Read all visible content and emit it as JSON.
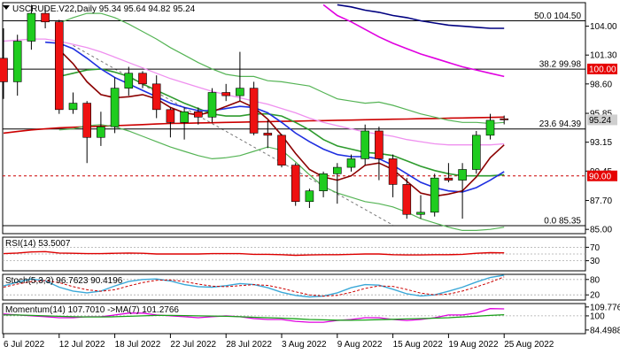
{
  "chart_data": [
    {
      "type": "candlestick",
      "title": "USCRUDE.V22,Daily  95.34 95.64 94.82 95.24",
      "ylim": [
        84.6,
        106.2
      ],
      "y_ticks": [
        "104.00",
        "101.30",
        "98.60",
        "95.85",
        "93.15",
        "90.45",
        "87.70",
        "85.00"
      ],
      "x_labels": [
        "6 Jul 2022",
        "12 Jul 2022",
        "18 Jul 2022",
        "22 Jul 2022",
        "28 Jul 2022",
        "3 Aug 2022",
        "9 Aug 2022",
        "15 Aug 2022",
        "19 Aug 2022",
        "25 Aug 2022"
      ],
      "x_label_index": [
        0,
        4,
        8,
        12,
        16,
        20,
        24,
        28,
        32,
        36
      ],
      "candles": [
        {
          "o": 101.0,
          "h": 103.8,
          "l": 97.2,
          "c": 98.8
        },
        {
          "o": 98.8,
          "h": 103.2,
          "l": 97.5,
          "c": 102.6
        },
        {
          "o": 102.6,
          "h": 106.0,
          "l": 101.8,
          "c": 105.2
        },
        {
          "o": 105.2,
          "h": 105.8,
          "l": 103.8,
          "c": 104.4
        },
        {
          "o": 104.4,
          "h": 104.6,
          "l": 95.8,
          "c": 96.2
        },
        {
          "o": 96.2,
          "h": 97.8,
          "l": 95.8,
          "c": 96.8
        },
        {
          "o": 96.8,
          "h": 97.0,
          "l": 91.2,
          "c": 93.6
        },
        {
          "o": 93.6,
          "h": 96.0,
          "l": 92.8,
          "c": 94.6
        },
        {
          "o": 94.6,
          "h": 99.2,
          "l": 94.0,
          "c": 98.2
        },
        {
          "o": 98.2,
          "h": 100.2,
          "l": 97.5,
          "c": 99.6
        },
        {
          "o": 99.6,
          "h": 99.8,
          "l": 98.2,
          "c": 98.6
        },
        {
          "o": 98.6,
          "h": 99.4,
          "l": 95.4,
          "c": 96.2
        },
        {
          "o": 96.2,
          "h": 96.4,
          "l": 93.6,
          "c": 95.0
        },
        {
          "o": 95.0,
          "h": 96.4,
          "l": 93.4,
          "c": 96.0
        },
        {
          "o": 96.0,
          "h": 96.4,
          "l": 94.8,
          "c": 95.5
        },
        {
          "o": 95.5,
          "h": 98.2,
          "l": 95.0,
          "c": 97.8
        },
        {
          "o": 97.8,
          "h": 98.6,
          "l": 97.0,
          "c": 97.5
        },
        {
          "o": 97.5,
          "h": 101.6,
          "l": 97.0,
          "c": 98.2
        },
        {
          "o": 98.2,
          "h": 98.8,
          "l": 93.8,
          "c": 94.0
        },
        {
          "o": 94.0,
          "h": 95.2,
          "l": 92.6,
          "c": 93.8
        },
        {
          "o": 93.8,
          "h": 93.9,
          "l": 90.8,
          "c": 91.0
        },
        {
          "o": 91.0,
          "h": 91.2,
          "l": 87.2,
          "c": 87.6
        },
        {
          "o": 87.6,
          "h": 88.8,
          "l": 87.0,
          "c": 88.6
        },
        {
          "o": 88.6,
          "h": 90.4,
          "l": 88.0,
          "c": 90.2
        },
        {
          "o": 90.2,
          "h": 91.2,
          "l": 87.4,
          "c": 90.8
        },
        {
          "o": 90.8,
          "h": 92.0,
          "l": 90.4,
          "c": 91.6
        },
        {
          "o": 91.6,
          "h": 94.8,
          "l": 91.0,
          "c": 94.2
        },
        {
          "o": 94.2,
          "h": 94.6,
          "l": 89.6,
          "c": 91.6
        },
        {
          "o": 91.6,
          "h": 92.0,
          "l": 88.0,
          "c": 89.2
        },
        {
          "o": 89.2,
          "h": 89.8,
          "l": 86.0,
          "c": 86.4
        },
        {
          "o": 86.4,
          "h": 88.2,
          "l": 86.0,
          "c": 86.6
        },
        {
          "o": 86.6,
          "h": 90.2,
          "l": 86.2,
          "c": 89.8
        },
        {
          "o": 89.8,
          "h": 91.2,
          "l": 89.4,
          "c": 89.6
        },
        {
          "o": 89.6,
          "h": 91.2,
          "l": 86.0,
          "c": 90.6
        },
        {
          "o": 90.6,
          "h": 94.2,
          "l": 90.2,
          "c": 93.8
        },
        {
          "o": 93.8,
          "h": 95.8,
          "l": 93.4,
          "c": 95.2
        },
        {
          "o": 95.34,
          "h": 95.64,
          "l": 94.82,
          "c": 95.24
        }
      ],
      "series": [
        {
          "color": "#000080",
          "width": 1.6,
          "values": [
            null,
            null,
            null,
            null,
            null,
            null,
            null,
            null,
            null,
            null,
            null,
            null,
            null,
            null,
            null,
            null,
            null,
            null,
            null,
            null,
            null,
            null,
            null,
            null,
            106.0,
            105.8,
            105.5,
            105.3,
            105.0,
            104.8,
            104.5,
            104.3,
            104.1,
            104.0,
            103.9,
            103.8,
            103.8
          ]
        },
        {
          "color": "#e000e0",
          "width": 1.6,
          "values": [
            null,
            null,
            null,
            null,
            null,
            null,
            null,
            null,
            null,
            null,
            null,
            null,
            null,
            null,
            null,
            null,
            null,
            null,
            null,
            null,
            null,
            null,
            null,
            106.0,
            105.0,
            104.4,
            103.7,
            103.0,
            102.4,
            101.9,
            101.4,
            101.0,
            100.6,
            100.2,
            99.9,
            99.6,
            99.3
          ]
        },
        {
          "color": "#cc0000",
          "width": 1.6,
          "values": [
            94.0,
            94.15,
            94.3,
            94.4,
            94.5,
            94.55,
            94.6,
            94.65,
            94.7,
            94.75,
            94.8,
            94.85,
            94.9,
            94.92,
            94.95,
            94.97,
            95.0,
            95.02,
            95.05,
            95.07,
            95.1,
            95.12,
            95.15,
            95.17,
            95.2,
            95.22,
            95.25,
            95.27,
            95.3,
            95.32,
            95.35,
            95.37,
            95.4,
            95.42,
            95.45,
            95.47,
            95.5
          ]
        },
        {
          "color": "#ef90ef",
          "width": 1.3,
          "values": [
            102.6,
            102.7,
            102.8,
            102.8,
            102.6,
            102.3,
            102.0,
            101.6,
            101.1,
            100.6,
            100.1,
            99.6,
            99.1,
            98.7,
            98.3,
            97.9,
            97.6,
            97.3,
            97.0,
            96.7,
            96.3,
            95.9,
            95.4,
            95.0,
            94.7,
            94.4,
            94.1,
            93.9,
            93.7,
            93.4,
            93.2,
            93.0,
            92.9,
            92.9,
            92.9,
            92.9,
            93.0
          ]
        },
        {
          "color": "#55b455",
          "width": 1.2,
          "values": [
            null,
            null,
            null,
            null,
            104.3,
            104.8,
            105.2,
            105.2,
            104.8,
            104.2,
            103.5,
            102.8,
            102.0,
            101.3,
            100.6,
            100.0,
            99.5,
            99.3,
            99.3,
            98.9,
            98.8,
            98.6,
            98.4,
            97.8,
            97.2,
            97.0,
            96.8,
            96.9,
            96.6,
            96.2,
            95.8,
            95.5,
            95.2,
            95.0,
            95.0,
            94.9,
            95.0
          ]
        },
        {
          "color": "#55b455",
          "width": 1.2,
          "values": [
            null,
            null,
            null,
            null,
            94.3,
            94.4,
            94.7,
            94.8,
            94.6,
            94.2,
            93.7,
            93.2,
            92.7,
            92.3,
            91.9,
            91.6,
            91.7,
            91.9,
            92.3,
            92.7,
            92.4,
            91.3,
            90.1,
            89.0,
            88.4,
            88.0,
            87.6,
            87.4,
            87.1,
            86.6,
            86.0,
            85.6,
            85.2,
            84.9,
            84.9,
            85.0,
            85.2
          ]
        },
        {
          "color": "#2e9b2e",
          "width": 1.6,
          "values": [
            null,
            null,
            null,
            null,
            99.3,
            99.6,
            99.9,
            100.0,
            99.7,
            99.3,
            98.6,
            98.0,
            97.4,
            96.8,
            96.3,
            95.8,
            95.6,
            95.6,
            95.8,
            95.8,
            95.6,
            95.0,
            94.3,
            93.4,
            92.8,
            92.5,
            92.2,
            92.1,
            91.9,
            91.4,
            90.9,
            90.5,
            90.2,
            90.0,
            90.0,
            90.0,
            90.1
          ]
        },
        {
          "color": "#1f2fe0",
          "width": 1.6,
          "values": [
            null,
            null,
            null,
            102.5,
            102.4,
            101.9,
            101.0,
            100.0,
            99.2,
            98.6,
            98.0,
            97.4,
            96.8,
            96.4,
            96.1,
            96.1,
            96.3,
            96.5,
            96.4,
            95.9,
            95.0,
            94.0,
            93.2,
            92.5,
            92.0,
            91.8,
            91.8,
            91.6,
            91.0,
            90.2,
            89.4,
            88.9,
            88.6,
            88.5,
            88.9,
            89.6,
            90.4
          ]
        },
        {
          "color": "#8b0000",
          "width": 1.6,
          "values": [
            null,
            null,
            null,
            null,
            101.8,
            100.5,
            98.8,
            97.6,
            97.3,
            97.4,
            97.6,
            97.2,
            96.4,
            95.9,
            95.7,
            96.0,
            96.5,
            97.0,
            96.4,
            95.3,
            93.8,
            92.1,
            90.6,
            89.9,
            89.6,
            90.0,
            91.0,
            91.2,
            90.6,
            89.5,
            88.4,
            88.1,
            88.3,
            88.6,
            89.9,
            91.7,
            92.9
          ]
        }
      ],
      "hlines": [
        {
          "y": 104.5,
          "color": "#000000",
          "dash": false,
          "label": "50.0 104.50"
        },
        {
          "y": 99.98,
          "color": "#000000",
          "dash": false,
          "label": "38.2 99.98"
        },
        {
          "y": 94.39,
          "color": "#000000",
          "dash": false,
          "label": "23.6 94.39"
        },
        {
          "y": 85.35,
          "color": "#000000",
          "dash": false,
          "label": "0.0 85.35"
        },
        {
          "y": 90.0,
          "color": "#cc0000",
          "dash": true,
          "label": ""
        }
      ],
      "fib_line": {
        "from_index": 5,
        "from_y": 102.2,
        "to_index": 28,
        "to_y": 85.4
      },
      "price_tags": [
        {
          "y": 100.0,
          "text": "100.00",
          "bg": "#e60000",
          "fg": "#ffffff"
        },
        {
          "y": 95.24,
          "text": "95.24",
          "bg": "#cfcfcf",
          "fg": "#000000"
        },
        {
          "y": 90.0,
          "text": "90.00",
          "bg": "#e60000",
          "fg": "#ffffff"
        }
      ],
      "up_color": "#1fcc1f",
      "down_color": "#ee1111"
    },
    {
      "type": "line",
      "title": "RSI(14) 53.5007",
      "ylim": [
        0,
        100
      ],
      "y_ticks": [
        "70",
        "30"
      ],
      "levels": [
        70,
        50,
        30
      ],
      "series": [
        {
          "color": "#dd0000",
          "width": 1.4,
          "values": [
            51,
            53,
            56,
            57,
            53,
            52,
            51,
            51,
            52,
            53,
            52,
            50,
            50,
            50,
            50,
            51,
            51,
            51,
            49,
            49,
            48,
            46,
            47,
            48,
            48,
            49,
            50,
            50,
            48,
            47,
            47,
            48,
            48,
            49,
            52,
            54,
            53.5
          ]
        }
      ]
    },
    {
      "type": "line",
      "title": "Stoch(5,3,3) 96.7623 90.4196",
      "ylim": [
        0,
        100
      ],
      "y_ticks": [
        "80",
        "20"
      ],
      "levels": [
        80,
        20
      ],
      "series": [
        {
          "color": "#3aa8d8",
          "width": 1.4,
          "values": [
            55,
            70,
            82,
            75,
            50,
            35,
            28,
            35,
            55,
            72,
            80,
            82,
            74,
            60,
            52,
            50,
            56,
            64,
            60,
            48,
            30,
            18,
            12,
            15,
            28,
            48,
            60,
            58,
            42,
            24,
            16,
            20,
            34,
            50,
            70,
            88,
            96.8
          ]
        },
        {
          "color": "#cc0000",
          "width": 1.0,
          "dash": true,
          "values": [
            50,
            62,
            72,
            76,
            68,
            52,
            40,
            34,
            40,
            55,
            68,
            77,
            78,
            72,
            62,
            54,
            52,
            56,
            60,
            57,
            46,
            32,
            20,
            15,
            18,
            30,
            45,
            55,
            53,
            41,
            27,
            20,
            23,
            35,
            51,
            69,
            90.4
          ]
        }
      ]
    },
    {
      "type": "line",
      "title": "Momentum(14) 107.7010  ->MA(7) 101.2766",
      "ylim": [
        80.5,
        113.5
      ],
      "y_ticks": [
        "109.7762",
        "100",
        "84.4988"
      ],
      "levels": [
        100
      ],
      "series": [
        {
          "color": "#dd00dd",
          "width": 1.3,
          "values": [
            102,
            101,
            100,
            99,
            98,
            98,
            99,
            99,
            101,
            103,
            103,
            101,
            100,
            99,
            98,
            99,
            100,
            99,
            97,
            96,
            96,
            94,
            93,
            93,
            95,
            96,
            98,
            98,
            96,
            95,
            96,
            98,
            101,
            101,
            103,
            108,
            107.7
          ]
        },
        {
          "color": "#18a018",
          "width": 1.3,
          "values": [
            101,
            101,
            100.5,
            100,
            99.5,
            99,
            98.8,
            98.8,
            99,
            99.5,
            100,
            100.5,
            100.5,
            100.3,
            100,
            99.8,
            99.5,
            99,
            98.5,
            98,
            97.5,
            96.8,
            96,
            95.6,
            95.3,
            95.2,
            95.4,
            95.8,
            96.2,
            96.6,
            97,
            97.5,
            98,
            98.8,
            99.6,
            100.5,
            101.3
          ]
        }
      ]
    }
  ]
}
